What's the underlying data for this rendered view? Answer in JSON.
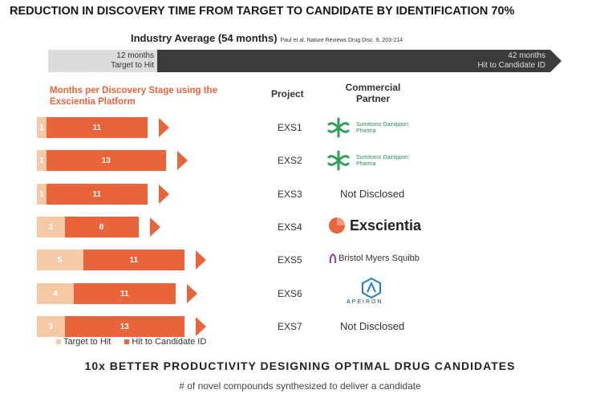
{
  "title": "REDUCTION IN DISCOVERY TIME FROM TARGET TO CANDIDATE BY IDENTIFICATION 70%",
  "industry": {
    "label": "Industry Average (54 months)",
    "citation": "Paul et al. Nature Reviews Drug Disc. 9, 203-214",
    "left_line1": "12 months",
    "left_line2": "Target to Hit",
    "right_line1": "42 months",
    "right_line2": "Hit to Candidate ID",
    "target_to_hit_months": 12,
    "hit_to_candidate_months": 42
  },
  "headers": {
    "months": "Months per Discovery Stage using the Exscientia Platform",
    "project": "Project",
    "partner_line1": "Commercial",
    "partner_line2": "Partner"
  },
  "chart_data": {
    "type": "bar",
    "stacked": true,
    "orientation": "horizontal",
    "categories": [
      "EXS1",
      "EXS2",
      "EXS3",
      "EXS4",
      "EXS5",
      "EXS6",
      "EXS7"
    ],
    "series": [
      {
        "name": "Target to Hit",
        "values": [
          1,
          1,
          1,
          3,
          5,
          4,
          3
        ]
      },
      {
        "name": "Hit to Candidate ID",
        "values": [
          11,
          13,
          11,
          8,
          11,
          11,
          13
        ]
      }
    ],
    "legend": "bottom"
  },
  "partners": [
    {
      "type": "logo",
      "name": "Sumitomo Dainippon Pharma",
      "line1": "Sumitomo Dainippon",
      "line2": "Pharma"
    },
    {
      "type": "logo",
      "name": "Sumitomo Dainippon Pharma",
      "line1": "Sumitomo Dainippon",
      "line2": "Pharma"
    },
    {
      "type": "text",
      "name": "Not Disclosed"
    },
    {
      "type": "logo",
      "name": "Exscientia"
    },
    {
      "type": "logo",
      "name": "Bristol Myers Squibb"
    },
    {
      "type": "logo",
      "name": "APEIRON"
    },
    {
      "type": "text",
      "name": "Not Disclosed"
    }
  ],
  "legend": {
    "target": "Target to Hit",
    "hit": "Hit to Candidate ID"
  },
  "colors": {
    "light": "#f6c9a6",
    "dark": "#e8643a",
    "band_dark": "#3b3b3b",
    "band_light": "#dcdcdc"
  },
  "tagline": "10x BETTER PRODUCTIVITY DESIGNING OPTIMAL DRUG CANDIDATES",
  "subline": "# of novel compounds synthesized to deliver a candidate"
}
